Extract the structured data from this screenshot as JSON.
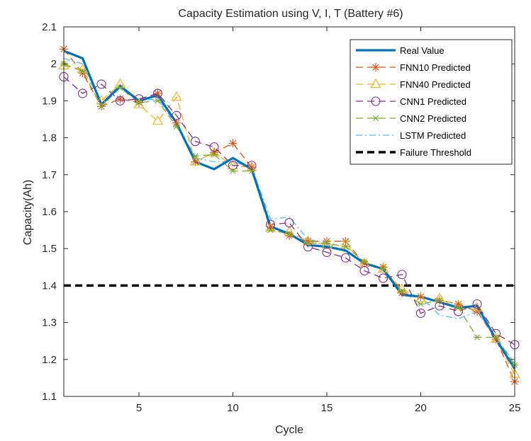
{
  "chart_data": {
    "type": "line",
    "title": "Capacity Estimation using V, I, T (Battery #6)",
    "xlabel": "Cycle",
    "ylabel": "Capacity(Ah)",
    "xlim": [
      1,
      25
    ],
    "ylim": [
      1.1,
      2.1
    ],
    "xticks": [
      5,
      10,
      15,
      20,
      25
    ],
    "yticks": [
      1.1,
      1.2,
      1.3,
      1.4,
      1.5,
      1.6,
      1.7,
      1.8,
      1.9,
      2.0,
      2.1
    ],
    "ytick_labels": [
      "1.1",
      "1.2",
      "1.3",
      "1.4",
      "1.5",
      "1.6",
      "1.7",
      "1.8",
      "1.9",
      "2",
      "2.1"
    ],
    "grid": false,
    "legend_position": "top-right",
    "x": [
      1,
      2,
      3,
      4,
      5,
      6,
      7,
      8,
      9,
      10,
      11,
      12,
      13,
      14,
      15,
      16,
      17,
      18,
      19,
      20,
      21,
      22,
      23,
      24,
      25
    ],
    "series": [
      {
        "name": "Real Value",
        "color": "#0072BD",
        "style": "solid",
        "marker": "none",
        "values": [
          2.035,
          2.015,
          1.89,
          1.94,
          1.9,
          1.915,
          1.84,
          1.735,
          1.715,
          1.745,
          1.715,
          1.56,
          1.54,
          1.51,
          1.505,
          1.495,
          1.46,
          1.445,
          1.375,
          1.37,
          1.355,
          1.34,
          1.345,
          1.255,
          1.175
        ]
      },
      {
        "name": "FNN10 Predicted",
        "color": "#D95319",
        "style": "dash",
        "marker": "asterisk",
        "values": [
          2.04,
          1.975,
          1.885,
          1.905,
          1.895,
          1.92,
          1.84,
          1.735,
          1.76,
          1.785,
          1.72,
          1.56,
          1.535,
          1.52,
          1.52,
          1.52,
          1.46,
          1.45,
          1.38,
          1.37,
          1.36,
          1.35,
          1.33,
          1.255,
          1.14
        ]
      },
      {
        "name": "FNN40 Predicted",
        "color": "#EDB120",
        "style": "dash",
        "marker": "triangle",
        "values": [
          1.995,
          1.985,
          1.9,
          1.945,
          1.89,
          1.845,
          1.91,
          1.735,
          1.76,
          1.725,
          1.72,
          1.555,
          1.545,
          1.52,
          1.51,
          1.51,
          1.46,
          1.445,
          1.39,
          1.365,
          1.365,
          1.345,
          1.34,
          1.255,
          1.16
        ]
      },
      {
        "name": "CNN1 Predicted",
        "color": "#7E2F8E",
        "style": "dash",
        "marker": "circle",
        "values": [
          1.965,
          1.92,
          1.945,
          1.9,
          1.905,
          1.92,
          1.86,
          1.79,
          1.775,
          1.725,
          1.725,
          1.565,
          1.57,
          1.505,
          1.49,
          1.475,
          1.44,
          1.42,
          1.43,
          1.325,
          1.345,
          1.33,
          1.35,
          1.27,
          1.24
        ]
      },
      {
        "name": "CNN2 Predicted",
        "color": "#77AC30",
        "style": "dash",
        "marker": "x-asterisk",
        "values": [
          2.0,
          1.98,
          1.885,
          1.935,
          1.895,
          1.9,
          1.83,
          1.75,
          1.755,
          1.71,
          1.71,
          1.55,
          1.54,
          1.515,
          1.515,
          1.505,
          1.465,
          1.445,
          1.385,
          1.35,
          1.36,
          1.34,
          1.26,
          1.26,
          1.185
        ]
      },
      {
        "name": "LSTM Predicted",
        "color": "#4DBEEE",
        "style": "dashdot",
        "marker": "none",
        "values": [
          2.015,
          2.0,
          1.89,
          1.935,
          1.9,
          1.905,
          1.835,
          1.745,
          1.735,
          1.735,
          1.72,
          1.58,
          1.585,
          1.525,
          1.515,
          1.49,
          1.465,
          1.44,
          1.38,
          1.37,
          1.32,
          1.31,
          1.33,
          1.26,
          1.19
        ]
      },
      {
        "name": "Failure Threshold",
        "color": "#000000",
        "style": "thickdash",
        "marker": "none",
        "values": [
          1.4,
          1.4,
          1.4,
          1.4,
          1.4,
          1.4,
          1.4,
          1.4,
          1.4,
          1.4,
          1.4,
          1.4,
          1.4,
          1.4,
          1.4,
          1.4,
          1.4,
          1.4,
          1.4,
          1.4,
          1.4,
          1.4,
          1.4,
          1.4,
          1.4
        ]
      }
    ]
  }
}
